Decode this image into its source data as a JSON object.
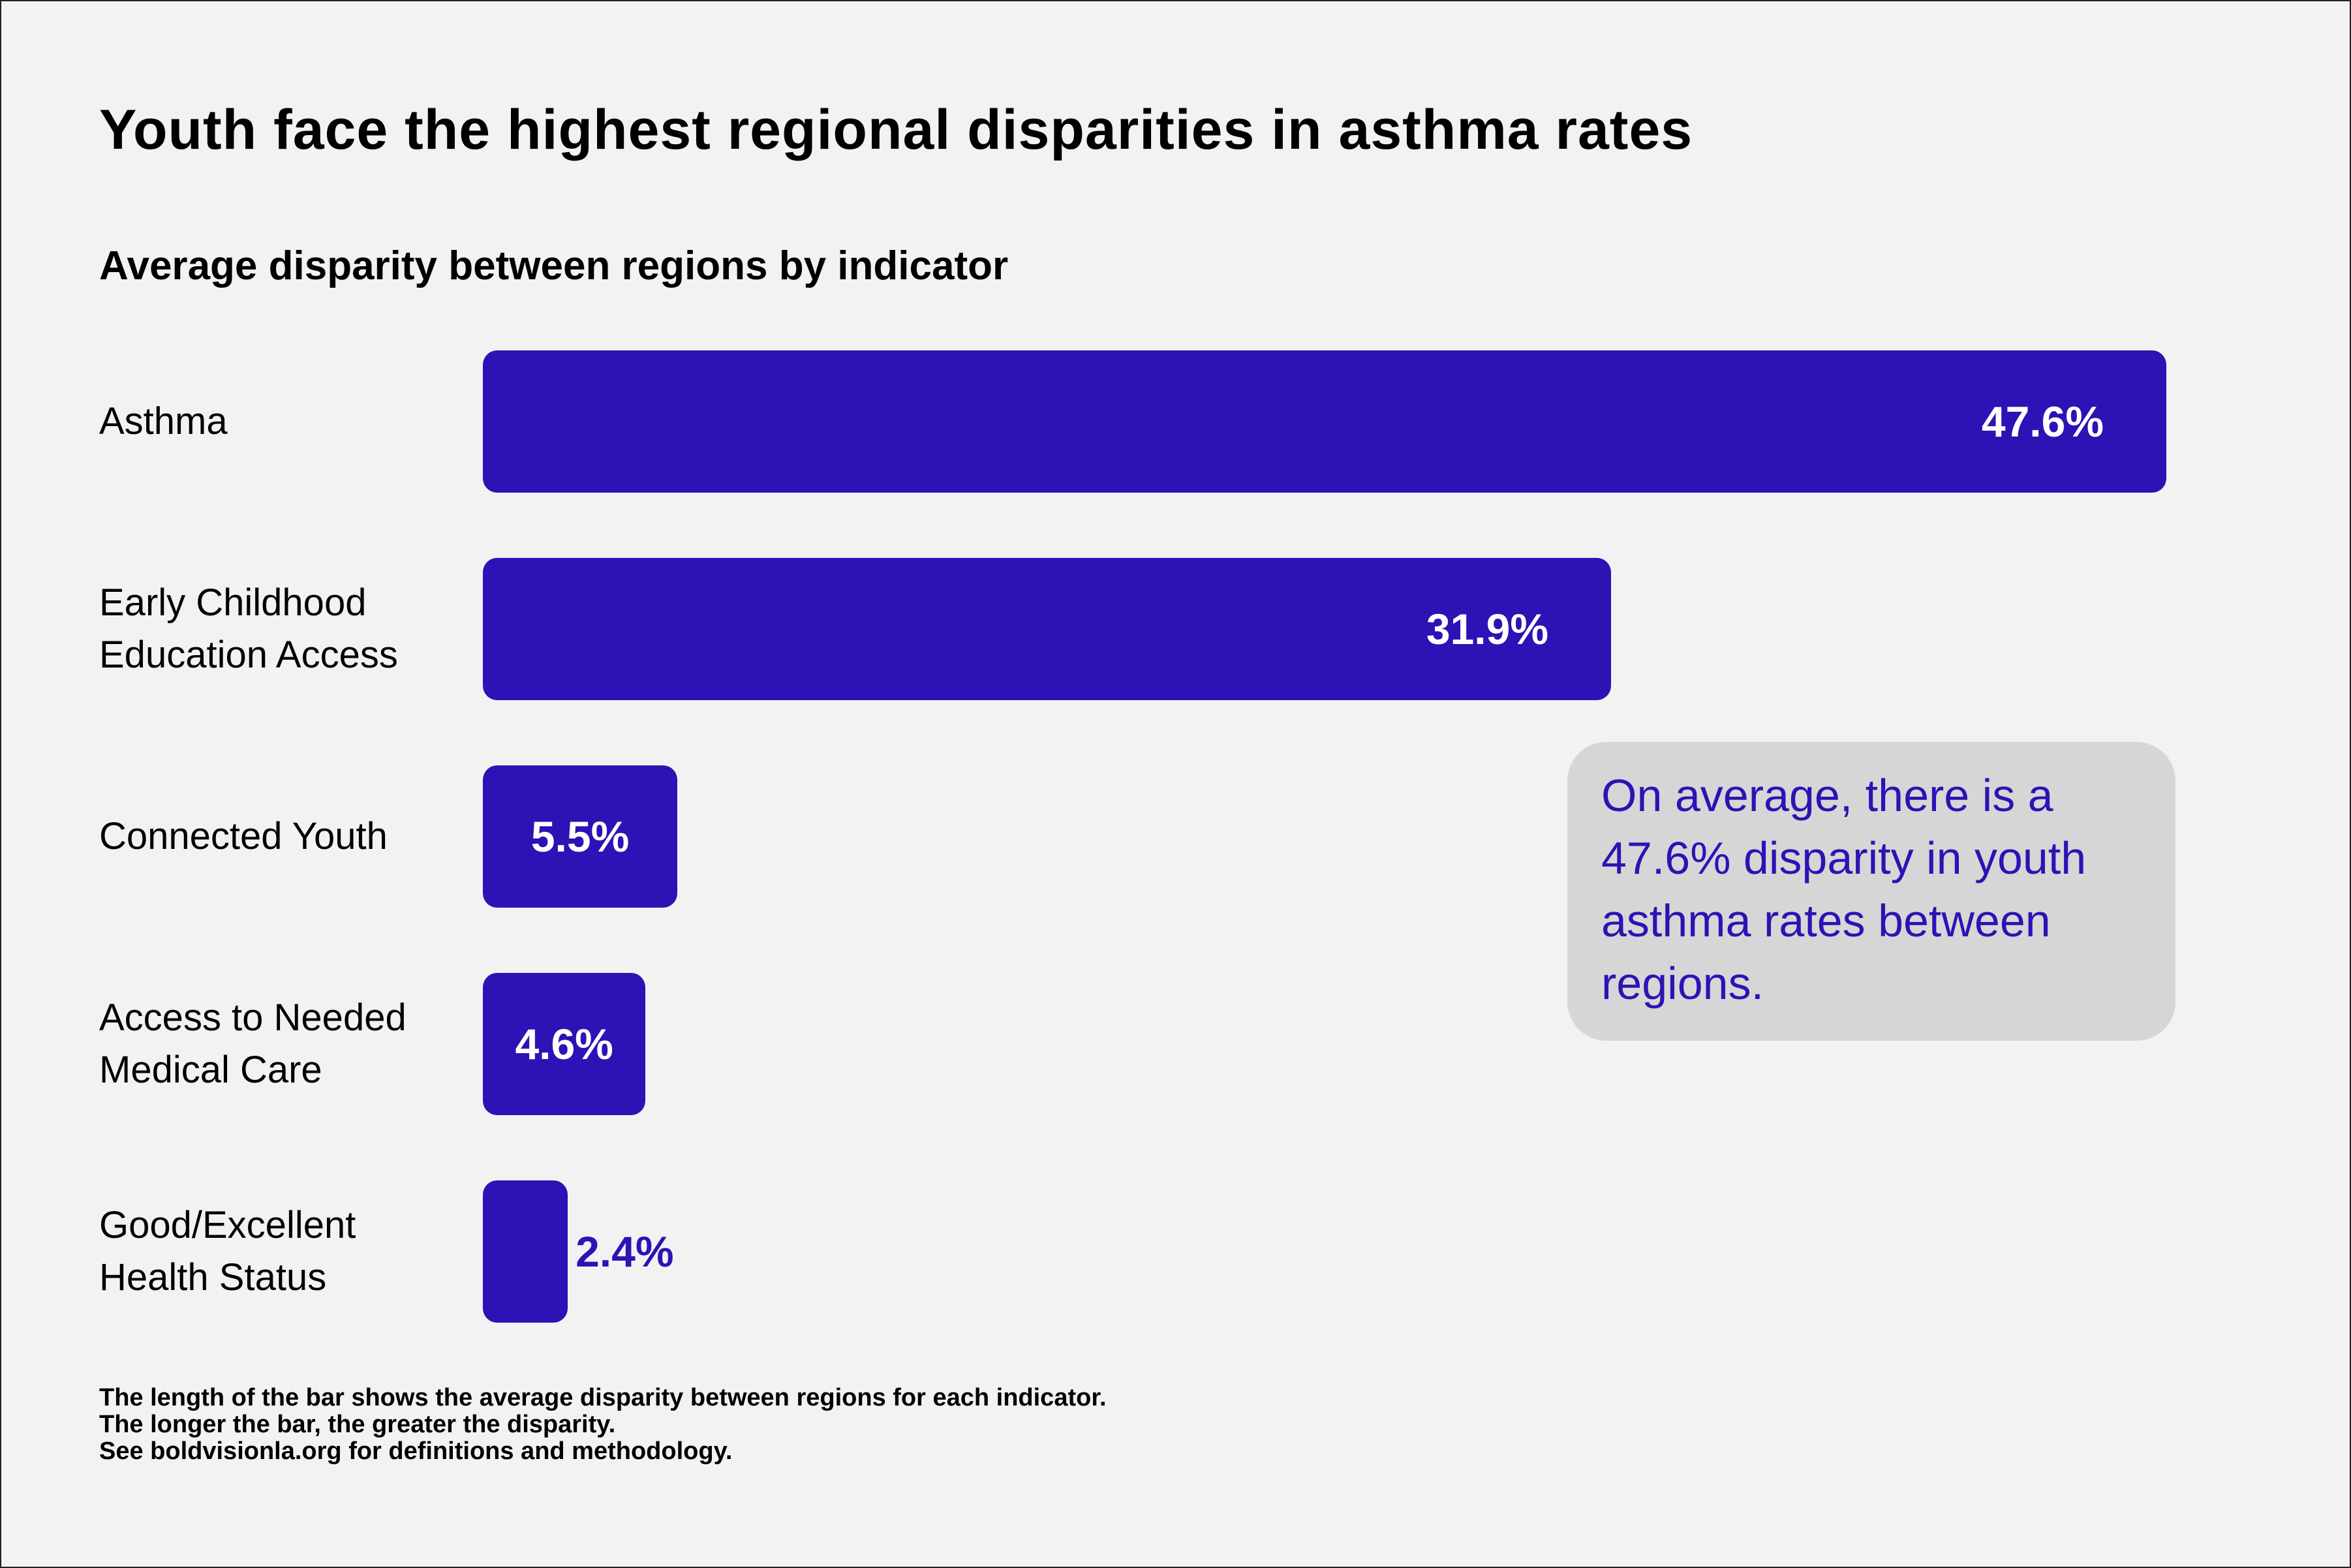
{
  "colors": {
    "bar": "#2b13b5",
    "value_inside": "#ffffff",
    "value_outside": "#2b13b5",
    "callout_text": "#2b13b5",
    "callout_bg": "#d6d6d6",
    "background": "#f2f2f2"
  },
  "chart_data": {
    "type": "bar",
    "orientation": "horizontal",
    "title": "Youth face the highest regional disparities in asthma rates",
    "subtitle": "Average disparity between regions by indicator",
    "categories": [
      "Asthma",
      "Early Childhood\nEducation Access",
      "Connected Youth",
      "Access to Needed\nMedical Care",
      "Good/Excellent\nHealth Status"
    ],
    "values": [
      47.6,
      31.9,
      5.5,
      4.6,
      2.4
    ],
    "value_labels": [
      "47.6%",
      "31.9%",
      "5.5%",
      "4.6%",
      "2.4%"
    ],
    "unit": "%",
    "xlim": [
      0,
      47.6
    ],
    "grid": false,
    "legend": "none",
    "annotation": "On average, there is a 47.6% disparity in youth asthma rates between regions."
  },
  "footnote": [
    "The length of the bar shows the average disparity between regions for each indicator.",
    "The longer the bar, the greater the disparity.",
    "See boldvisionla.org for definitions and methodology."
  ]
}
